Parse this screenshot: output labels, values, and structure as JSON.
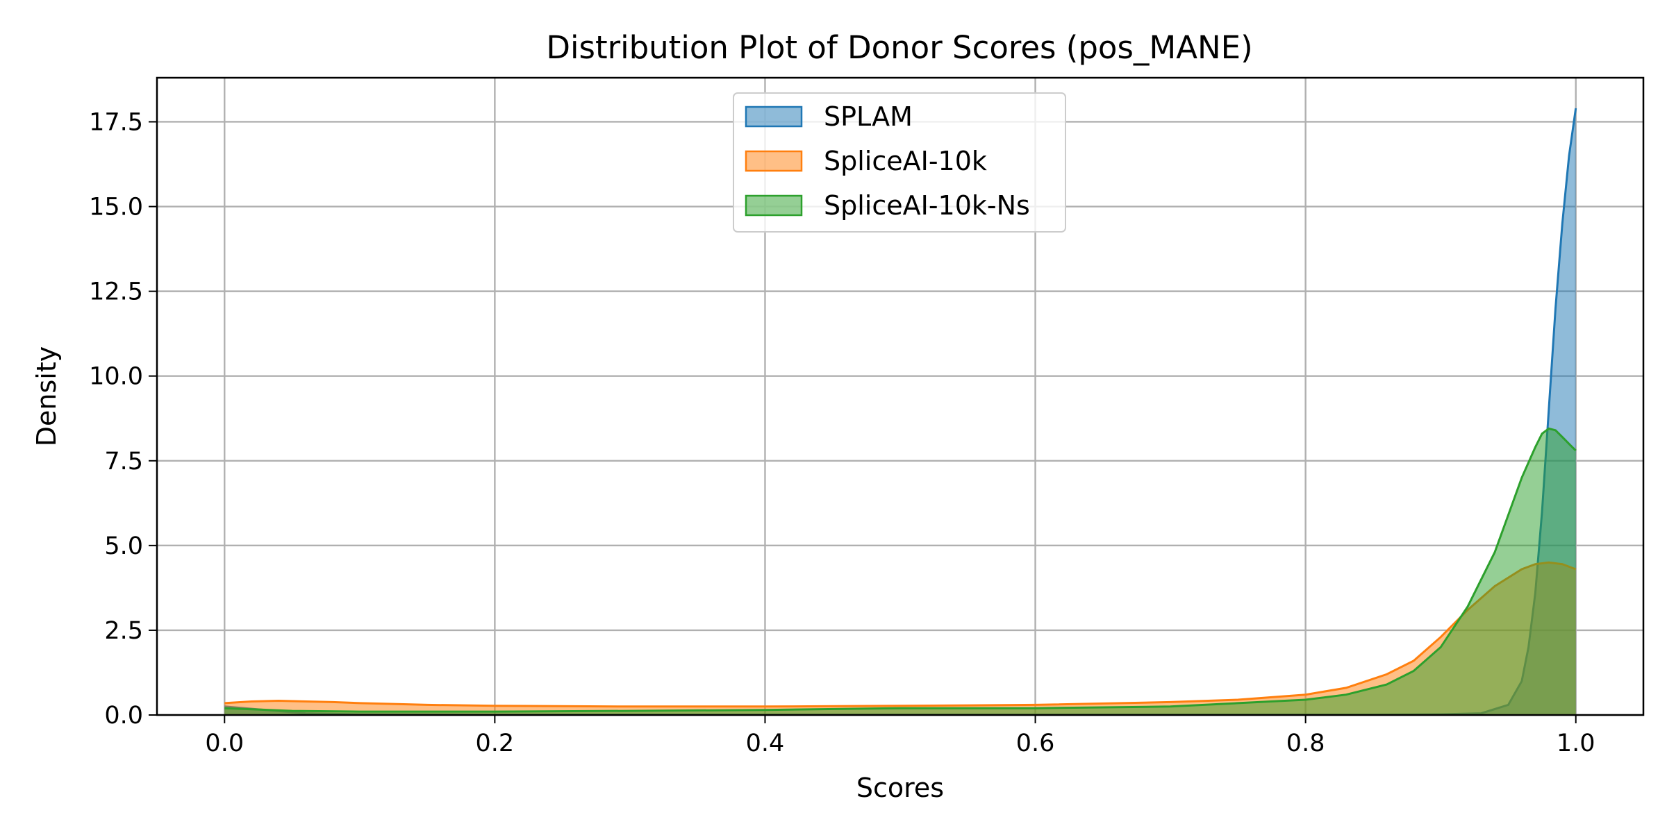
{
  "chart_data": {
    "type": "area",
    "title": "Distribution Plot of Donor Scores (pos_MANE)",
    "xlabel": "Scores",
    "ylabel": "Density",
    "xlim": [
      -0.05,
      1.05
    ],
    "ylim": [
      0,
      18.8
    ],
    "xticks": [
      0.0,
      0.2,
      0.4,
      0.6,
      0.8,
      1.0
    ],
    "xtick_labels": [
      "0.0",
      "0.2",
      "0.4",
      "0.6",
      "0.8",
      "1.0"
    ],
    "yticks": [
      0,
      2.5,
      5,
      7.5,
      10,
      12.5,
      15,
      17.5
    ],
    "ytick_labels": [
      "0.0",
      "2.5",
      "5.0",
      "7.5",
      "10.0",
      "12.5",
      "15.0",
      "17.5"
    ],
    "grid": true,
    "legend_position": "upper center",
    "series": [
      {
        "name": "SPLAM",
        "color": "#1f77b4",
        "x": [
          0.0,
          0.03,
          0.06,
          0.1,
          0.2,
          0.3,
          0.4,
          0.5,
          0.6,
          0.7,
          0.8,
          0.85,
          0.9,
          0.93,
          0.95,
          0.96,
          0.965,
          0.97,
          0.975,
          0.98,
          0.985,
          0.99,
          0.995,
          1.0
        ],
        "y": [
          0.25,
          0.15,
          0.05,
          0.02,
          0.01,
          0.01,
          0.01,
          0.01,
          0.01,
          0.01,
          0.01,
          0.01,
          0.02,
          0.05,
          0.3,
          1.0,
          2.0,
          3.6,
          6.0,
          9.0,
          12.0,
          14.5,
          16.5,
          17.9
        ]
      },
      {
        "name": "SpliceAI-10k",
        "color": "#ff7f0e",
        "x": [
          0.0,
          0.02,
          0.04,
          0.06,
          0.08,
          0.1,
          0.15,
          0.2,
          0.3,
          0.4,
          0.5,
          0.6,
          0.7,
          0.75,
          0.8,
          0.83,
          0.86,
          0.88,
          0.9,
          0.92,
          0.94,
          0.96,
          0.97,
          0.98,
          0.99,
          1.0
        ],
        "y": [
          0.35,
          0.4,
          0.42,
          0.4,
          0.38,
          0.35,
          0.3,
          0.27,
          0.25,
          0.25,
          0.27,
          0.3,
          0.38,
          0.45,
          0.6,
          0.8,
          1.2,
          1.6,
          2.3,
          3.1,
          3.8,
          4.3,
          4.45,
          4.5,
          4.45,
          4.3
        ]
      },
      {
        "name": "SpliceAI-10k-Ns",
        "color": "#2ca02c",
        "x": [
          0.0,
          0.05,
          0.1,
          0.2,
          0.3,
          0.4,
          0.5,
          0.6,
          0.7,
          0.75,
          0.8,
          0.83,
          0.86,
          0.88,
          0.9,
          0.92,
          0.94,
          0.95,
          0.96,
          0.97,
          0.975,
          0.98,
          0.985,
          0.99,
          0.995,
          1.0
        ],
        "y": [
          0.2,
          0.12,
          0.1,
          0.1,
          0.12,
          0.15,
          0.2,
          0.2,
          0.25,
          0.35,
          0.45,
          0.6,
          0.9,
          1.3,
          2.0,
          3.2,
          4.8,
          5.9,
          7.0,
          7.9,
          8.3,
          8.45,
          8.4,
          8.2,
          8.0,
          7.8
        ]
      }
    ]
  }
}
